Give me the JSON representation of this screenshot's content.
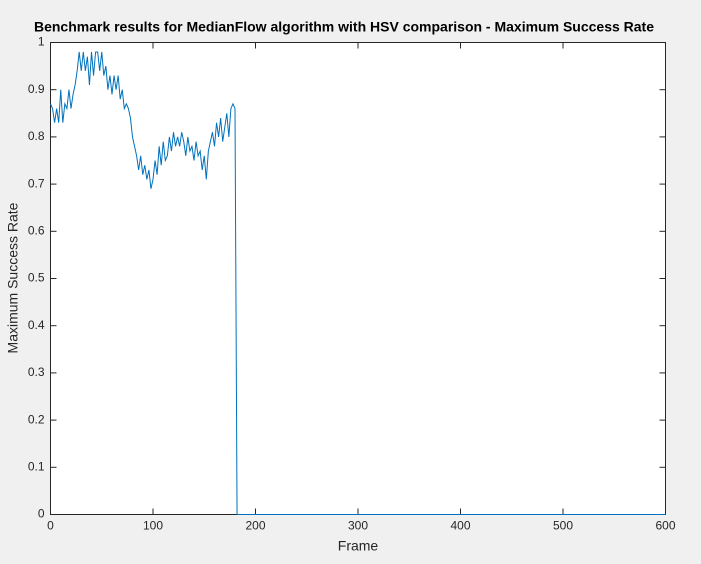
{
  "chart_data": {
    "type": "line",
    "title": "Benchmark results for MedianFlow algorithm with HSV comparison - Maximum Success Rate",
    "x_label": "Frame",
    "y_label": "Maximum Success Rate",
    "x": [
      0,
      2,
      4,
      6,
      8,
      10,
      12,
      14,
      16,
      18,
      20,
      22,
      24,
      26,
      28,
      30,
      32,
      34,
      36,
      38,
      40,
      42,
      44,
      46,
      48,
      50,
      52,
      54,
      56,
      58,
      60,
      62,
      64,
      66,
      68,
      70,
      72,
      74,
      76,
      78,
      80,
      82,
      84,
      86,
      88,
      90,
      92,
      94,
      96,
      98,
      100,
      102,
      104,
      106,
      108,
      110,
      112,
      114,
      116,
      118,
      120,
      122,
      124,
      126,
      128,
      130,
      132,
      134,
      136,
      138,
      140,
      142,
      144,
      146,
      148,
      150,
      152,
      154,
      156,
      158,
      160,
      162,
      164,
      166,
      168,
      170,
      172,
      174,
      176,
      178,
      180,
      182,
      600
    ],
    "values": [
      0.87,
      0.86,
      0.83,
      0.86,
      0.83,
      0.9,
      0.83,
      0.87,
      0.86,
      0.9,
      0.86,
      0.89,
      0.91,
      0.94,
      0.98,
      0.94,
      0.98,
      0.94,
      0.97,
      0.91,
      0.98,
      0.93,
      0.98,
      0.98,
      0.94,
      0.98,
      0.93,
      0.95,
      0.9,
      0.93,
      0.89,
      0.93,
      0.9,
      0.93,
      0.88,
      0.9,
      0.86,
      0.87,
      0.86,
      0.84,
      0.8,
      0.78,
      0.76,
      0.73,
      0.76,
      0.72,
      0.74,
      0.71,
      0.73,
      0.69,
      0.71,
      0.75,
      0.72,
      0.78,
      0.74,
      0.79,
      0.75,
      0.76,
      0.8,
      0.77,
      0.81,
      0.78,
      0.8,
      0.78,
      0.81,
      0.79,
      0.76,
      0.8,
      0.77,
      0.78,
      0.75,
      0.79,
      0.76,
      0.77,
      0.73,
      0.76,
      0.71,
      0.77,
      0.79,
      0.81,
      0.78,
      0.83,
      0.8,
      0.84,
      0.79,
      0.82,
      0.85,
      0.8,
      0.86,
      0.87,
      0.86,
      0,
      0
    ],
    "color": "#0072bd",
    "xlim": [
      0,
      600
    ],
    "xticks": [
      0,
      100,
      200,
      300,
      400,
      500,
      600
    ],
    "ylim": [
      0,
      1
    ],
    "yticks": [
      0,
      0.1,
      0.2,
      0.3,
      0.4,
      0.5,
      0.6,
      0.7,
      0.8,
      0.9,
      1
    ]
  }
}
